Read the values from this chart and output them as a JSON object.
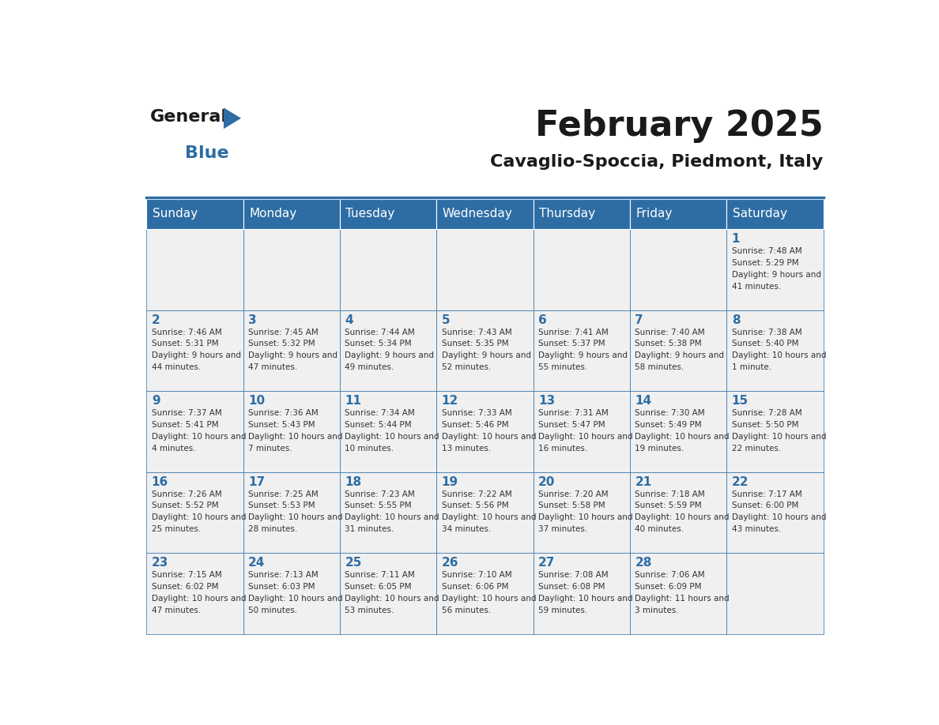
{
  "title": "February 2025",
  "subtitle": "Cavaglio-Spoccia, Piedmont, Italy",
  "header_bg": "#2E6DA4",
  "header_text": "#FFFFFF",
  "cell_bg_light": "#F0F0F0",
  "border_color": "#2E6DA4",
  "day_headers": [
    "Sunday",
    "Monday",
    "Tuesday",
    "Wednesday",
    "Thursday",
    "Friday",
    "Saturday"
  ],
  "title_color": "#1a1a1a",
  "subtitle_color": "#1a1a1a",
  "day_num_color": "#2E6DA4",
  "info_color": "#333333",
  "days": [
    {
      "day": 1,
      "col": 6,
      "row": 0,
      "sunrise": "7:48 AM",
      "sunset": "5:29 PM",
      "daylight": "9 hours and 41 minutes."
    },
    {
      "day": 2,
      "col": 0,
      "row": 1,
      "sunrise": "7:46 AM",
      "sunset": "5:31 PM",
      "daylight": "9 hours and 44 minutes."
    },
    {
      "day": 3,
      "col": 1,
      "row": 1,
      "sunrise": "7:45 AM",
      "sunset": "5:32 PM",
      "daylight": "9 hours and 47 minutes."
    },
    {
      "day": 4,
      "col": 2,
      "row": 1,
      "sunrise": "7:44 AM",
      "sunset": "5:34 PM",
      "daylight": "9 hours and 49 minutes."
    },
    {
      "day": 5,
      "col": 3,
      "row": 1,
      "sunrise": "7:43 AM",
      "sunset": "5:35 PM",
      "daylight": "9 hours and 52 minutes."
    },
    {
      "day": 6,
      "col": 4,
      "row": 1,
      "sunrise": "7:41 AM",
      "sunset": "5:37 PM",
      "daylight": "9 hours and 55 minutes."
    },
    {
      "day": 7,
      "col": 5,
      "row": 1,
      "sunrise": "7:40 AM",
      "sunset": "5:38 PM",
      "daylight": "9 hours and 58 minutes."
    },
    {
      "day": 8,
      "col": 6,
      "row": 1,
      "sunrise": "7:38 AM",
      "sunset": "5:40 PM",
      "daylight": "10 hours and 1 minute."
    },
    {
      "day": 9,
      "col": 0,
      "row": 2,
      "sunrise": "7:37 AM",
      "sunset": "5:41 PM",
      "daylight": "10 hours and 4 minutes."
    },
    {
      "day": 10,
      "col": 1,
      "row": 2,
      "sunrise": "7:36 AM",
      "sunset": "5:43 PM",
      "daylight": "10 hours and 7 minutes."
    },
    {
      "day": 11,
      "col": 2,
      "row": 2,
      "sunrise": "7:34 AM",
      "sunset": "5:44 PM",
      "daylight": "10 hours and 10 minutes."
    },
    {
      "day": 12,
      "col": 3,
      "row": 2,
      "sunrise": "7:33 AM",
      "sunset": "5:46 PM",
      "daylight": "10 hours and 13 minutes."
    },
    {
      "day": 13,
      "col": 4,
      "row": 2,
      "sunrise": "7:31 AM",
      "sunset": "5:47 PM",
      "daylight": "10 hours and 16 minutes."
    },
    {
      "day": 14,
      "col": 5,
      "row": 2,
      "sunrise": "7:30 AM",
      "sunset": "5:49 PM",
      "daylight": "10 hours and 19 minutes."
    },
    {
      "day": 15,
      "col": 6,
      "row": 2,
      "sunrise": "7:28 AM",
      "sunset": "5:50 PM",
      "daylight": "10 hours and 22 minutes."
    },
    {
      "day": 16,
      "col": 0,
      "row": 3,
      "sunrise": "7:26 AM",
      "sunset": "5:52 PM",
      "daylight": "10 hours and 25 minutes."
    },
    {
      "day": 17,
      "col": 1,
      "row": 3,
      "sunrise": "7:25 AM",
      "sunset": "5:53 PM",
      "daylight": "10 hours and 28 minutes."
    },
    {
      "day": 18,
      "col": 2,
      "row": 3,
      "sunrise": "7:23 AM",
      "sunset": "5:55 PM",
      "daylight": "10 hours and 31 minutes."
    },
    {
      "day": 19,
      "col": 3,
      "row": 3,
      "sunrise": "7:22 AM",
      "sunset": "5:56 PM",
      "daylight": "10 hours and 34 minutes."
    },
    {
      "day": 20,
      "col": 4,
      "row": 3,
      "sunrise": "7:20 AM",
      "sunset": "5:58 PM",
      "daylight": "10 hours and 37 minutes."
    },
    {
      "day": 21,
      "col": 5,
      "row": 3,
      "sunrise": "7:18 AM",
      "sunset": "5:59 PM",
      "daylight": "10 hours and 40 minutes."
    },
    {
      "day": 22,
      "col": 6,
      "row": 3,
      "sunrise": "7:17 AM",
      "sunset": "6:00 PM",
      "daylight": "10 hours and 43 minutes."
    },
    {
      "day": 23,
      "col": 0,
      "row": 4,
      "sunrise": "7:15 AM",
      "sunset": "6:02 PM",
      "daylight": "10 hours and 47 minutes."
    },
    {
      "day": 24,
      "col": 1,
      "row": 4,
      "sunrise": "7:13 AM",
      "sunset": "6:03 PM",
      "daylight": "10 hours and 50 minutes."
    },
    {
      "day": 25,
      "col": 2,
      "row": 4,
      "sunrise": "7:11 AM",
      "sunset": "6:05 PM",
      "daylight": "10 hours and 53 minutes."
    },
    {
      "day": 26,
      "col": 3,
      "row": 4,
      "sunrise": "7:10 AM",
      "sunset": "6:06 PM",
      "daylight": "10 hours and 56 minutes."
    },
    {
      "day": 27,
      "col": 4,
      "row": 4,
      "sunrise": "7:08 AM",
      "sunset": "6:08 PM",
      "daylight": "10 hours and 59 minutes."
    },
    {
      "day": 28,
      "col": 5,
      "row": 4,
      "sunrise": "7:06 AM",
      "sunset": "6:09 PM",
      "daylight": "11 hours and 3 minutes."
    }
  ]
}
